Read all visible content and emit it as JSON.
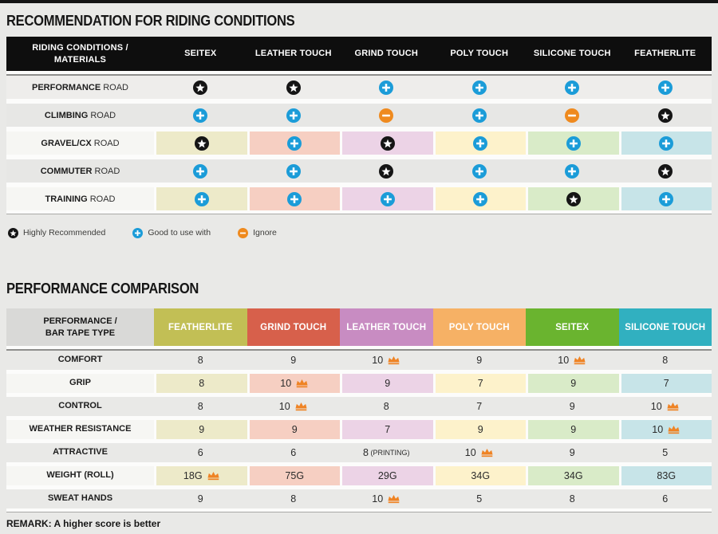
{
  "chart_data": [
    {
      "type": "table",
      "title": "RECOMMENDATION FOR RIDING CONDITIONS",
      "corner_header": "RIDING CONDITIONS / MATERIALS",
      "columns": [
        "SEITEX",
        "LEATHER TOUCH",
        "GRIND TOUCH",
        "POLY TOUCH",
        "SILICONE TOUCH",
        "FEATHERLITE"
      ],
      "rows": [
        {
          "label_bold": "PERFORMANCE",
          "label_rest": "ROAD",
          "colored": false,
          "cells": [
            "star",
            "star",
            "plus",
            "plus",
            "plus",
            "plus"
          ]
        },
        {
          "label_bold": "CLIMBING",
          "label_rest": "ROAD",
          "colored": false,
          "cells": [
            "plus",
            "plus",
            "minus",
            "plus",
            "minus",
            "star"
          ]
        },
        {
          "label_bold": "GRAVEL/CX",
          "label_rest": "ROAD",
          "colored": true,
          "cells": [
            "star",
            "plus",
            "star",
            "plus",
            "plus",
            "plus"
          ]
        },
        {
          "label_bold": "COMMUTER",
          "label_rest": "ROAD",
          "colored": false,
          "cells": [
            "plus",
            "plus",
            "star",
            "plus",
            "plus",
            "star"
          ]
        },
        {
          "label_bold": "TRAINING",
          "label_rest": "ROAD",
          "colored": true,
          "cells": [
            "plus",
            "plus",
            "plus",
            "plus",
            "star",
            "plus"
          ]
        }
      ],
      "legend": [
        {
          "icon": "star",
          "label": "Highly Recommended"
        },
        {
          "icon": "plus",
          "label": "Good to use with"
        },
        {
          "icon": "minus",
          "label": "Ignore"
        }
      ]
    },
    {
      "type": "table",
      "title": "PERFORMANCE COMPARISON",
      "corner_header": "PERFORMANCE / BAR TAPE TYPE",
      "columns": [
        {
          "label": "FEATHERLITE",
          "color": "#c2bf55"
        },
        {
          "label": "GRIND TOUCH",
          "color": "#d7604b"
        },
        {
          "label": "LEATHER TOUCH",
          "color": "#c88cc2"
        },
        {
          "label": "POLY TOUCH",
          "color": "#f6b165"
        },
        {
          "label": "SEITEX",
          "color": "#6ab42f"
        },
        {
          "label": "SILICONE TOUCH",
          "color": "#31b0c0"
        }
      ],
      "rows": [
        {
          "label": "COMFORT",
          "colored": false,
          "cells": [
            {
              "value": "8"
            },
            {
              "value": "9"
            },
            {
              "value": "10",
              "crown": true
            },
            {
              "value": "9"
            },
            {
              "value": "10",
              "crown": true
            },
            {
              "value": "8"
            }
          ]
        },
        {
          "label": "GRIP",
          "colored": true,
          "cells": [
            {
              "value": "8"
            },
            {
              "value": "10",
              "crown": true
            },
            {
              "value": "9"
            },
            {
              "value": "7"
            },
            {
              "value": "9"
            },
            {
              "value": "7"
            }
          ]
        },
        {
          "label": "CONTROL",
          "colored": false,
          "cells": [
            {
              "value": "8"
            },
            {
              "value": "10",
              "crown": true
            },
            {
              "value": "8"
            },
            {
              "value": "7"
            },
            {
              "value": "9"
            },
            {
              "value": "10",
              "crown": true
            }
          ]
        },
        {
          "label": "WEATHER RESISTANCE",
          "colored": true,
          "cells": [
            {
              "value": "9"
            },
            {
              "value": "9"
            },
            {
              "value": "7"
            },
            {
              "value": "9"
            },
            {
              "value": "9"
            },
            {
              "value": "10",
              "crown": true
            }
          ]
        },
        {
          "label": "ATTRACTIVE",
          "colored": false,
          "cells": [
            {
              "value": "6"
            },
            {
              "value": "6"
            },
            {
              "value": "8",
              "note": "(PRINTING)"
            },
            {
              "value": "10",
              "crown": true
            },
            {
              "value": "9"
            },
            {
              "value": "5"
            }
          ]
        },
        {
          "label": "WEIGHT (ROLL)",
          "colored": true,
          "cells": [
            {
              "value": "18G",
              "crown": true
            },
            {
              "value": "75G"
            },
            {
              "value": "29G"
            },
            {
              "value": "34G"
            },
            {
              "value": "34G"
            },
            {
              "value": "83G"
            }
          ]
        },
        {
          "label": "SWEAT HANDS",
          "colored": false,
          "cells": [
            {
              "value": "9"
            },
            {
              "value": "8"
            },
            {
              "value": "10",
              "crown": true
            },
            {
              "value": "5"
            },
            {
              "value": "8"
            },
            {
              "value": "6"
            }
          ]
        }
      ],
      "remark": "REMARK: A higher score is better"
    }
  ],
  "colors": {
    "page_bg": "#e9e9e7",
    "header_black": "#0e0e0e",
    "badge_star": "#151515",
    "badge_plus": "#1b9cd8",
    "badge_minus": "#ef8a1e",
    "crown": "#ef8324",
    "cell_tints": [
      "#edeac9",
      "#f6cfc2",
      "#ecd3e6",
      "#fdf2cb",
      "#d9ebc8",
      "#c7e4e8"
    ]
  }
}
